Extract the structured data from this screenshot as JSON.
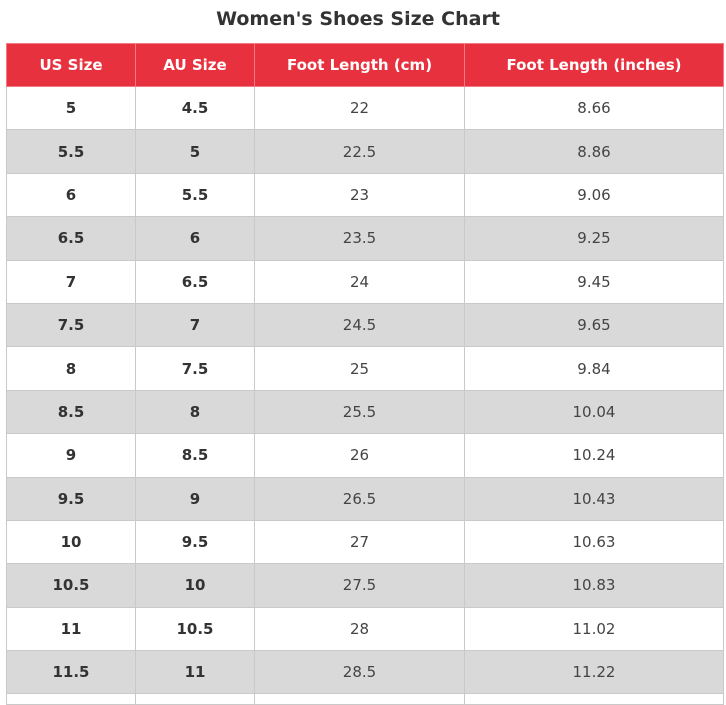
{
  "title": "Women's Shoes Size Chart",
  "colors": {
    "header_bg": "#e8313e",
    "header_text": "#ffffff",
    "row_alt_bg": "#d9d9d9",
    "row_bg": "#ffffff",
    "border": "#c9c9c9",
    "text": "#333333"
  },
  "table": {
    "headers": [
      "US Size",
      "AU Size",
      "Foot Length (cm)",
      "Foot Length (inches)"
    ],
    "rows": [
      [
        "5",
        "4.5",
        "22",
        "8.66"
      ],
      [
        "5.5",
        "5",
        "22.5",
        "8.86"
      ],
      [
        "6",
        "5.5",
        "23",
        "9.06"
      ],
      [
        "6.5",
        "6",
        "23.5",
        "9.25"
      ],
      [
        "7",
        "6.5",
        "24",
        "9.45"
      ],
      [
        "7.5",
        "7",
        "24.5",
        "9.65"
      ],
      [
        "8",
        "7.5",
        "25",
        "9.84"
      ],
      [
        "8.5",
        "8",
        "25.5",
        "10.04"
      ],
      [
        "9",
        "8.5",
        "26",
        "10.24"
      ],
      [
        "9.5",
        "9",
        "26.5",
        "10.43"
      ],
      [
        "10",
        "9.5",
        "27",
        "10.63"
      ],
      [
        "10.5",
        "10",
        "27.5",
        "10.83"
      ],
      [
        "11",
        "10.5",
        "28",
        "11.02"
      ],
      [
        "11.5",
        "11",
        "28.5",
        "11.22"
      ]
    ]
  }
}
